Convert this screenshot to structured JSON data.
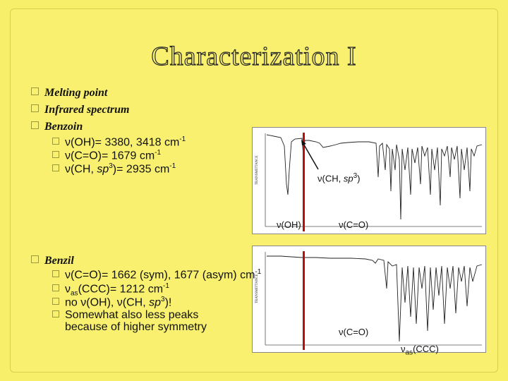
{
  "slide": {
    "title": "Characterization I",
    "bullets": [
      {
        "label": "Melting point"
      },
      {
        "label": "Infrared spectrum"
      },
      {
        "label": "Benzoin"
      }
    ],
    "benzoin_items": [
      {
        "pre": "ν(OH)= 3380, 3418 cm",
        "sup": "-1"
      },
      {
        "pre": "ν(C=O)= 1679 cm",
        "sup": "-1"
      },
      {
        "pre": "ν(CH, ",
        "em": "sp",
        "emsup": "3",
        "post": ")= 2935 cm",
        "sup": "-1"
      }
    ],
    "benzil_label": "Benzil",
    "benzil_items": [
      {
        "text": "ν(C=O)= 1662 (sym), 1677 (asym) cm",
        "sup": "-1"
      },
      {
        "pre": "ν",
        "sub": "as",
        "post": "(CCC)= 1212 cm",
        "sup": "-1"
      },
      {
        "text": "no ν(OH), ν(CH, ",
        "em": "sp",
        "emsup": "3",
        "post": ")!"
      },
      {
        "line1": "Somewhat also less peaks",
        "line2": "because of higher symmetry"
      }
    ],
    "annotations": {
      "ch_sp3": {
        "pre": "ν(CH, ",
        "em": "sp",
        "emsup": "3",
        "post": ")"
      },
      "oh": "ν(OH)",
      "co_top": "ν(C=O)",
      "co_bottom": "ν(C=O)",
      "ccc": {
        "pre": "ν",
        "sub": "as",
        "post": "(CCC)"
      }
    },
    "colors": {
      "background": "#f7ee6a",
      "marker": "#b80f0f"
    }
  }
}
